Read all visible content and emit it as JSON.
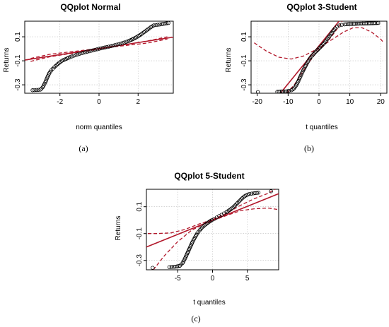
{
  "colors": {
    "points": "#000000",
    "fit_line": "#b2182b",
    "band": "#b2182b",
    "grid": "#bdbdbd"
  },
  "chart_data": [
    {
      "type": "scatter",
      "panel_label": "(a)",
      "title": "QQplot Normal",
      "xlabel": "norm quantiles",
      "ylabel": "Returns",
      "xlim": [
        -3.8,
        3.8
      ],
      "ylim": [
        -0.37,
        0.23
      ],
      "xticks": [
        -2,
        0,
        2
      ],
      "xtick_labels": [
        "-2",
        "0",
        "2"
      ],
      "yticks": [
        0.1,
        -0.1,
        -0.3
      ],
      "ytick_labels": [
        "0.1",
        "-0.1",
        "-0.3"
      ],
      "grid": true,
      "fit_line": [
        [
          -3.8,
          -0.094
        ],
        [
          3.8,
          0.097
        ]
      ],
      "band_upper": [
        [
          -3.5,
          -0.08
        ],
        [
          -2.5,
          -0.045
        ],
        [
          0,
          0.003
        ],
        [
          2.5,
          0.048
        ],
        [
          3.5,
          0.082
        ]
      ],
      "band_lower": [
        [
          -3.5,
          -0.105
        ],
        [
          -2.5,
          -0.066
        ],
        [
          0,
          -0.003
        ],
        [
          2.5,
          0.066
        ],
        [
          3.5,
          0.1
        ]
      ],
      "points": [
        [
          -3.4,
          -0.345
        ],
        [
          -3.2,
          -0.343
        ],
        [
          -3.0,
          -0.34
        ],
        [
          -2.88,
          -0.32
        ],
        [
          -2.75,
          -0.28
        ],
        [
          -2.65,
          -0.24
        ],
        [
          -2.55,
          -0.205
        ],
        [
          -2.45,
          -0.18
        ],
        [
          -2.3,
          -0.155
        ],
        [
          -2.1,
          -0.125
        ],
        [
          -1.9,
          -0.1
        ],
        [
          -1.7,
          -0.085
        ],
        [
          -1.5,
          -0.07
        ],
        [
          -1.3,
          -0.058
        ],
        [
          -1.1,
          -0.047
        ],
        [
          -0.9,
          -0.037
        ],
        [
          -0.7,
          -0.028
        ],
        [
          -0.5,
          -0.02
        ],
        [
          -0.3,
          -0.012
        ],
        [
          -0.1,
          -0.004
        ],
        [
          0.1,
          0.004
        ],
        [
          0.3,
          0.011
        ],
        [
          0.5,
          0.018
        ],
        [
          0.7,
          0.026
        ],
        [
          0.9,
          0.034
        ],
        [
          1.1,
          0.043
        ],
        [
          1.3,
          0.053
        ],
        [
          1.5,
          0.064
        ],
        [
          1.7,
          0.078
        ],
        [
          1.9,
          0.095
        ],
        [
          2.1,
          0.115
        ],
        [
          2.3,
          0.138
        ],
        [
          2.5,
          0.162
        ],
        [
          2.65,
          0.18
        ],
        [
          2.8,
          0.195
        ],
        [
          3.0,
          0.2
        ],
        [
          3.2,
          0.205
        ],
        [
          3.55,
          0.215
        ]
      ]
    },
    {
      "type": "scatter",
      "panel_label": "(b)",
      "title": "QQplot 3-Student",
      "xlabel": "t quantiles",
      "ylabel": "Returns",
      "xlim": [
        -22,
        22
      ],
      "ylim": [
        -0.37,
        0.23
      ],
      "xticks": [
        -20,
        -10,
        0,
        10,
        20
      ],
      "xtick_labels": [
        "-20",
        "-10",
        "0",
        "10",
        "20"
      ],
      "yticks": [
        0.1,
        -0.1,
        -0.3
      ],
      "ytick_labels": [
        "0.1",
        "-0.1",
        "-0.3"
      ],
      "grid": true,
      "fit_line": [
        [
          -12.5,
          -0.37
        ],
        [
          6.5,
          0.23
        ]
      ],
      "band_upper": [
        [
          -21,
          0.05
        ],
        [
          -17,
          -0.02
        ],
        [
          -13,
          -0.07
        ],
        [
          -9,
          -0.085
        ],
        [
          -5,
          -0.06
        ],
        [
          -2,
          -0.02
        ],
        [
          0,
          0.005
        ],
        [
          2,
          0.04
        ],
        [
          5,
          0.09
        ],
        [
          8,
          0.14
        ],
        [
          11,
          0.175
        ],
        [
          14,
          0.175
        ],
        [
          17,
          0.14
        ],
        [
          20,
          0.08
        ],
        [
          21,
          0.05
        ]
      ],
      "band_lower": [
        [
          -10.5,
          -0.37
        ],
        [
          -8,
          -0.3
        ],
        [
          -5,
          -0.18
        ],
        [
          -2,
          -0.07
        ],
        [
          0,
          -0.005
        ],
        [
          2,
          0.04
        ],
        [
          4,
          0.1
        ],
        [
          6,
          0.17
        ],
        [
          7.5,
          0.23
        ]
      ],
      "points": [
        [
          -19.8,
          -0.36
        ],
        [
          -13.5,
          -0.358
        ],
        [
          -12,
          -0.355
        ],
        [
          -10.6,
          -0.355
        ],
        [
          -9.7,
          -0.35
        ],
        [
          -8.9,
          -0.345
        ],
        [
          -8.1,
          -0.33
        ],
        [
          -7.4,
          -0.305
        ],
        [
          -6.7,
          -0.27
        ],
        [
          -6.0,
          -0.23
        ],
        [
          -5.3,
          -0.19
        ],
        [
          -4.6,
          -0.155
        ],
        [
          -3.9,
          -0.12
        ],
        [
          -3.2,
          -0.09
        ],
        [
          -2.5,
          -0.065
        ],
        [
          -1.8,
          -0.045
        ],
        [
          -1.1,
          -0.025
        ],
        [
          -0.4,
          -0.008
        ],
        [
          0.3,
          0.01
        ],
        [
          1.0,
          0.028
        ],
        [
          1.7,
          0.048
        ],
        [
          2.4,
          0.07
        ],
        [
          3.1,
          0.095
        ],
        [
          3.8,
          0.12
        ],
        [
          4.5,
          0.145
        ],
        [
          5.2,
          0.17
        ],
        [
          5.9,
          0.185
        ],
        [
          6.6,
          0.195
        ],
        [
          7.4,
          0.2
        ],
        [
          8.3,
          0.203
        ],
        [
          9.4,
          0.206
        ],
        [
          11.8,
          0.208
        ],
        [
          13.6,
          0.21
        ],
        [
          16.2,
          0.212
        ],
        [
          19.2,
          0.215
        ]
      ]
    },
    {
      "type": "scatter",
      "panel_label": "(c)",
      "title": "QQplot 5-Student",
      "xlabel": "t quantiles",
      "ylabel": "Returns",
      "xlim": [
        -9.5,
        9.5
      ],
      "ylim": [
        -0.37,
        0.23
      ],
      "xticks": [
        -5,
        0,
        5
      ],
      "xtick_labels": [
        "-5",
        "0",
        "5"
      ],
      "yticks": [
        0.1,
        -0.1,
        -0.3
      ],
      "ytick_labels": [
        "0.1",
        "-0.1",
        "-0.3"
      ],
      "grid": true,
      "fit_line": [
        [
          -9.5,
          -0.2
        ],
        [
          9.5,
          0.197
        ]
      ],
      "band_upper": [
        [
          -9.3,
          -0.1
        ],
        [
          -8,
          -0.1
        ],
        [
          -6,
          -0.095
        ],
        [
          -4,
          -0.07
        ],
        [
          -2,
          -0.03
        ],
        [
          0,
          0.005
        ],
        [
          2,
          0.05
        ],
        [
          4,
          0.11
        ],
        [
          6,
          0.16
        ],
        [
          8,
          0.2
        ],
        [
          9,
          0.23
        ]
      ],
      "band_lower": [
        [
          -8.5,
          -0.37
        ],
        [
          -7,
          -0.27
        ],
        [
          -5,
          -0.16
        ],
        [
          -3,
          -0.075
        ],
        [
          -1,
          -0.022
        ],
        [
          0,
          -0.005
        ],
        [
          2,
          0.035
        ],
        [
          4,
          0.07
        ],
        [
          6,
          0.085
        ],
        [
          8,
          0.09
        ],
        [
          9.3,
          0.08
        ]
      ],
      "points": [
        [
          -8.6,
          -0.355
        ],
        [
          -6.2,
          -0.35
        ],
        [
          -5.6,
          -0.348
        ],
        [
          -5.1,
          -0.345
        ],
        [
          -4.7,
          -0.34
        ],
        [
          -4.3,
          -0.32
        ],
        [
          -3.95,
          -0.285
        ],
        [
          -3.6,
          -0.245
        ],
        [
          -3.25,
          -0.205
        ],
        [
          -2.9,
          -0.165
        ],
        [
          -2.55,
          -0.13
        ],
        [
          -2.2,
          -0.1
        ],
        [
          -1.85,
          -0.075
        ],
        [
          -1.5,
          -0.055
        ],
        [
          -1.15,
          -0.038
        ],
        [
          -0.8,
          -0.024
        ],
        [
          -0.45,
          -0.011
        ],
        [
          -0.1,
          0.0
        ],
        [
          0.25,
          0.01
        ],
        [
          0.6,
          0.02
        ],
        [
          0.95,
          0.03
        ],
        [
          1.3,
          0.04
        ],
        [
          1.65,
          0.05
        ],
        [
          2.0,
          0.06
        ],
        [
          2.35,
          0.072
        ],
        [
          2.7,
          0.085
        ],
        [
          3.05,
          0.1
        ],
        [
          3.4,
          0.118
        ],
        [
          3.75,
          0.137
        ],
        [
          4.1,
          0.155
        ],
        [
          4.45,
          0.172
        ],
        [
          4.8,
          0.185
        ],
        [
          5.3,
          0.195
        ],
        [
          5.9,
          0.2
        ],
        [
          6.6,
          0.205
        ],
        [
          8.4,
          0.215
        ]
      ]
    }
  ]
}
